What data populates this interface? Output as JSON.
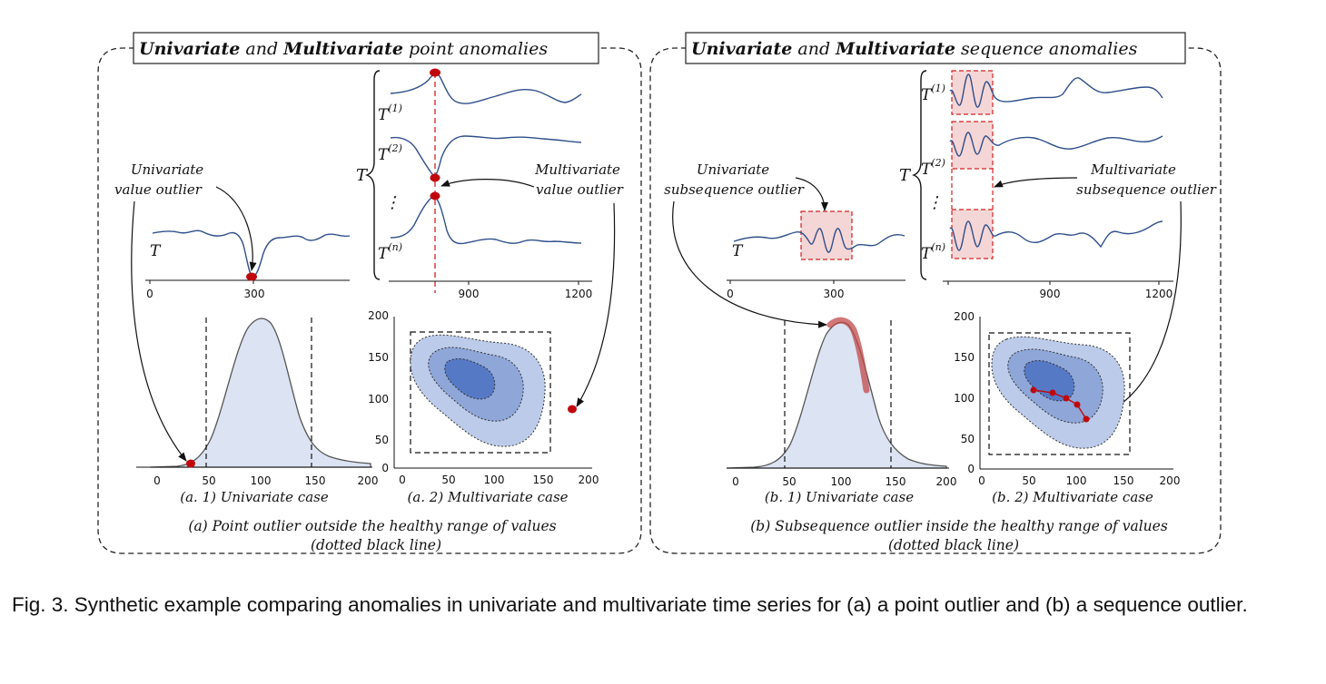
{
  "colors": {
    "series_line": "#2f4f8a",
    "outlier": "#c0080c",
    "highlight_fill": "#f2c8c8",
    "highlight_border": "#d22020",
    "density_fill": "#dce4f3",
    "density_stroke": "#555555",
    "contour_1": "#bccbe9",
    "contour_2": "#8ea6d8",
    "contour_3": "#5579c4",
    "subseq_band": "#c14a4a"
  },
  "panel_a": {
    "title_bold_1": "Univariate",
    "title_mid": " and ",
    "title_bold_2": "Multivariate",
    "title_end": " point anomalies",
    "series_label": "T",
    "upper_T": "T",
    "upper_T1": "(1)",
    "upper_T2": "(2)",
    "upper_Tn": "(n)",
    "dots": "⋮",
    "uni_callout_l1": "Univariate",
    "uni_callout_l2": "value outlier",
    "multi_callout_l1": "Multivariate",
    "multi_callout_l2": "value outlier",
    "a1_caption": "(a. 1) Univariate case",
    "a2_caption": "(a. 2) Multivariate case",
    "caption_l1": "(a) Point outlier outside  the healthy range of values",
    "caption_l2": "(dotted black line)",
    "series_ticks": [
      "0",
      "300"
    ],
    "multi_ticks": [
      "900",
      "1200"
    ],
    "density_xticks": [
      "0",
      "50",
      "100",
      "150",
      "200"
    ],
    "scatter_xticks": [
      "0",
      "50",
      "100",
      "150",
      "200"
    ],
    "scatter_yticks": [
      "0",
      "50",
      "100",
      "150",
      "200"
    ]
  },
  "panel_b": {
    "title_bold_1": "Univariate",
    "title_mid": " and ",
    "title_bold_2": "Multivariate",
    "title_end": " sequence anomalies",
    "series_label": "T",
    "upper_T": "T",
    "upper_T1": "(1)",
    "upper_T2": "(2)",
    "upper_Tn": "(n)",
    "dots": "⋮",
    "uni_callout_l1": "Univariate",
    "uni_callout_l2": "subsequence outlier",
    "multi_callout_l1": "Multivariate",
    "multi_callout_l2": "subsequence outlier",
    "b1_caption": "(b. 1) Univariate case",
    "b2_caption": "(b. 2) Multivariate case",
    "caption_l1": "(b) Subsequence outlier inside the healthy range of values",
    "caption_l2": "(dotted black line)",
    "series_ticks": [
      "0",
      "300"
    ],
    "multi_ticks": [
      "900",
      "1200"
    ],
    "density_xticks": [
      "0",
      "50",
      "100",
      "150",
      "200"
    ],
    "scatter_xticks": [
      "0",
      "50",
      "100",
      "150",
      "200"
    ],
    "scatter_yticks": [
      "0",
      "50",
      "100",
      "150",
      "200"
    ]
  },
  "figure_caption": "Fig. 3.  Synthetic example comparing anomalies in univariate and multivariate time series for (a) a point outlier and (b) a sequence outlier."
}
